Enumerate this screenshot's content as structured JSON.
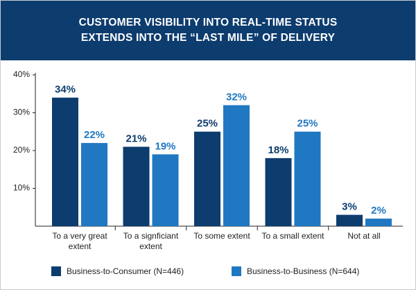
{
  "chart_data": {
    "type": "bar",
    "title": "CUSTOMER VISIBILITY INTO REAL-TIME STATUS EXTENDS INTO THE “LAST MILE” OF DELIVERY",
    "categories": [
      "To a very great extent",
      "To a signficiant extent",
      "To some extent",
      "To a small extent",
      "Not at all"
    ],
    "series": [
      {
        "name": "Business-to-Consumer (N=446)",
        "color": "#0d3c6e",
        "values": [
          34,
          21,
          25,
          18,
          3
        ],
        "value_labels": [
          "34%",
          "21%",
          "25%",
          "18%",
          "3%"
        ]
      },
      {
        "name": "Business-to-Business (N=644)",
        "color": "#1f78c1",
        "values": [
          22,
          19,
          32,
          25,
          2
        ],
        "value_labels": [
          "22%",
          "19%",
          "32%",
          "25%",
          "2%"
        ]
      }
    ],
    "ylim": [
      0,
      40
    ],
    "yticks": [
      {
        "value": 10,
        "label": "10%"
      },
      {
        "value": 20,
        "label": "20%"
      },
      {
        "value": 30,
        "label": "30%"
      },
      {
        "value": 40,
        "label": "40%"
      }
    ],
    "grid": false,
    "legend": "bottom"
  }
}
